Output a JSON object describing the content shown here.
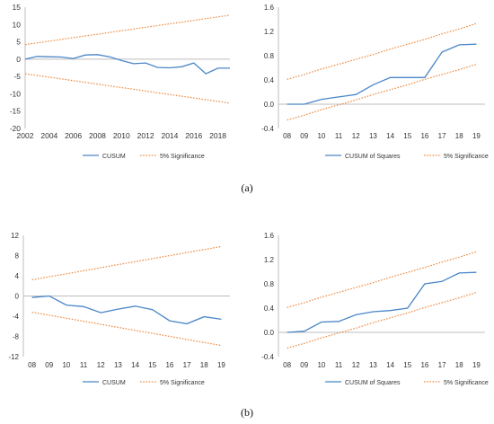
{
  "panel_labels": [
    "(a)",
    "(b)"
  ],
  "colors": {
    "cusum": "#4a86c8",
    "significance": "#ee8a40",
    "axis": "#bdbdbd"
  },
  "chart_data": [
    {
      "type": "line",
      "x": [
        "2002",
        "2003",
        "2004",
        "2005",
        "2006",
        "2007",
        "2008",
        "2009",
        "2010",
        "2011",
        "2012",
        "2013",
        "2014",
        "2015",
        "2016",
        "2017",
        "2018",
        "2019"
      ],
      "x_tick_labels": [
        "2002",
        "2004",
        "2006",
        "2008",
        "2010",
        "2012",
        "2014",
        "2016",
        "2018"
      ],
      "ylim": [
        -20,
        15
      ],
      "y_ticks": [
        15,
        10,
        5,
        0,
        -5,
        -10,
        -15,
        -20
      ],
      "y_tick_labels": [
        "15",
        "10",
        "5",
        "0",
        "-5",
        "-10",
        "-15",
        "-20"
      ],
      "series": [
        {
          "name": "CUSUM",
          "values": [
            0,
            0.8,
            0.7,
            0.6,
            0.2,
            1.2,
            1.3,
            0.7,
            -0.4,
            -1.3,
            -1.1,
            -2.4,
            -2.5,
            -2.2,
            -1.1,
            -4.2,
            -2.6,
            -2.6
          ]
        },
        {
          "name": "5% Significance",
          "values": [
            4.2,
            4.7,
            5.2,
            5.7,
            6.2,
            6.7,
            7.2,
            7.7,
            8.2,
            8.7,
            9.2,
            9.7,
            10.2,
            10.7,
            11.2,
            11.7,
            12.2,
            12.7
          ]
        },
        {
          "name": "",
          "values": [
            -4.2,
            -4.7,
            -5.2,
            -5.7,
            -6.2,
            -6.7,
            -7.2,
            -7.7,
            -8.2,
            -8.7,
            -9.2,
            -9.7,
            -10.2,
            -10.7,
            -11.2,
            -11.7,
            -12.2,
            -12.7
          ]
        }
      ],
      "legend": [
        "CUSUM",
        "5% Significance"
      ]
    },
    {
      "type": "line",
      "x": [
        "08",
        "09",
        "10",
        "11",
        "12",
        "13",
        "14",
        "15",
        "16",
        "17",
        "18",
        "19"
      ],
      "x_tick_labels": [
        "08",
        "09",
        "10",
        "11",
        "12",
        "13",
        "14",
        "15",
        "16",
        "17",
        "18",
        "19"
      ],
      "ylim": [
        -0.4,
        1.6
      ],
      "y_ticks": [
        1.6,
        1.2,
        0.8,
        0.4,
        0.0,
        -0.4
      ],
      "y_tick_labels": [
        "1.6",
        "1.2",
        "0.8",
        "0.4",
        "0.0",
        "-0.4"
      ],
      "series": [
        {
          "name": "CUSUM of Squares",
          "values": [
            0.0,
            0.0,
            0.08,
            0.12,
            0.16,
            0.32,
            0.44,
            0.44,
            0.44,
            0.86,
            0.98,
            0.99
          ]
        },
        {
          "name": "5% Significance",
          "values": [
            0.41,
            0.49,
            0.58,
            0.66,
            0.74,
            0.82,
            0.91,
            0.99,
            1.07,
            1.16,
            1.24,
            1.33
          ]
        },
        {
          "name": "",
          "values": [
            -0.26,
            -0.18,
            -0.09,
            -0.01,
            0.07,
            0.16,
            0.24,
            0.32,
            0.41,
            0.49,
            0.57,
            0.66
          ]
        }
      ],
      "legend": [
        "CUSUM of Squares",
        "5% Significance"
      ]
    },
    {
      "type": "line",
      "x": [
        "08",
        "09",
        "10",
        "11",
        "12",
        "13",
        "14",
        "15",
        "16",
        "17",
        "18",
        "19"
      ],
      "x_tick_labels": [
        "08",
        "09",
        "10",
        "11",
        "12",
        "13",
        "14",
        "15",
        "16",
        "17",
        "18",
        "19"
      ],
      "ylim": [
        -12,
        12
      ],
      "y_ticks": [
        12,
        8,
        4,
        0,
        -4,
        -8,
        -12
      ],
      "y_tick_labels": [
        "12",
        "8",
        "4",
        "0",
        "-4",
        "-8",
        "-12"
      ],
      "series": [
        {
          "name": "CUSUM",
          "values": [
            -0.3,
            0.0,
            -1.8,
            -2.1,
            -3.3,
            -2.6,
            -2.0,
            -2.7,
            -4.9,
            -5.5,
            -4.1,
            -4.6
          ]
        },
        {
          "name": "5% Significance",
          "values": [
            3.2,
            3.8,
            4.4,
            5.0,
            5.6,
            6.2,
            6.8,
            7.4,
            8.0,
            8.6,
            9.2,
            9.8
          ]
        },
        {
          "name": "",
          "values": [
            -3.2,
            -3.8,
            -4.4,
            -5.0,
            -5.6,
            -6.2,
            -6.8,
            -7.4,
            -8.0,
            -8.6,
            -9.2,
            -9.8
          ]
        }
      ],
      "legend": [
        "CUSUM",
        "5% Significance"
      ]
    },
    {
      "type": "line",
      "x": [
        "08",
        "09",
        "10",
        "11",
        "12",
        "13",
        "14",
        "15",
        "16",
        "17",
        "18",
        "19"
      ],
      "x_tick_labels": [
        "08",
        "09",
        "10",
        "11",
        "12",
        "13",
        "14",
        "15",
        "16",
        "17",
        "18",
        "19"
      ],
      "ylim": [
        -0.4,
        1.6
      ],
      "y_ticks": [
        1.6,
        1.2,
        0.8,
        0.4,
        0.0,
        -0.4
      ],
      "y_tick_labels": [
        "1.6",
        "1.2",
        "0.8",
        "0.4",
        "0.0",
        "-0.4"
      ],
      "series": [
        {
          "name": "CUSUM of Squares",
          "values": [
            0.0,
            0.02,
            0.17,
            0.18,
            0.29,
            0.34,
            0.36,
            0.4,
            0.8,
            0.84,
            0.98,
            0.99
          ]
        },
        {
          "name": "5% Significance",
          "values": [
            0.41,
            0.49,
            0.58,
            0.66,
            0.74,
            0.82,
            0.91,
            0.99,
            1.07,
            1.16,
            1.24,
            1.33
          ]
        },
        {
          "name": "",
          "values": [
            -0.26,
            -0.18,
            -0.09,
            -0.01,
            0.07,
            0.16,
            0.24,
            0.32,
            0.41,
            0.49,
            0.57,
            0.66
          ]
        }
      ],
      "legend": [
        "CUSUM of Squares",
        "5% Significance"
      ]
    }
  ]
}
